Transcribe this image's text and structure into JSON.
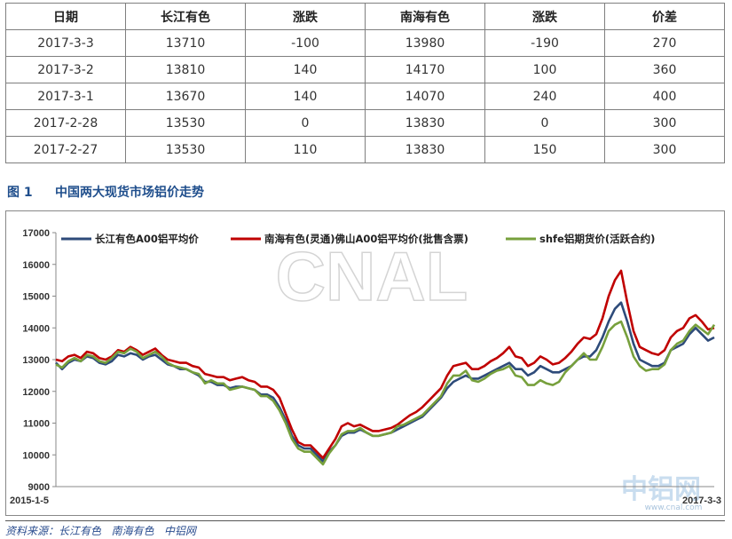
{
  "table": {
    "headers": [
      "日期",
      "长江有色",
      "涨跌",
      "南海有色",
      "涨跌",
      "价差"
    ],
    "rows": [
      [
        "2017-3-3",
        "13710",
        "-100",
        "13980",
        "-190",
        "270"
      ],
      [
        "2017-3-2",
        "13810",
        "140",
        "14170",
        "100",
        "360"
      ],
      [
        "2017-3-1",
        "13670",
        "140",
        "14070",
        "240",
        "400"
      ],
      [
        "2017-2-28",
        "13530",
        "0",
        "13830",
        "0",
        "300"
      ],
      [
        "2017-2-27",
        "13530",
        "110",
        "13830",
        "150",
        "300"
      ]
    ]
  },
  "figure": {
    "number": "图 1",
    "title": "中国两大现货市场铝价走势"
  },
  "watermark": {
    "text": "CNAL",
    "logo_text": "中铝网",
    "logo_url": "www.cnal.com"
  },
  "source_note": "资料来源：长江有色   南海有色   中铝网",
  "chart_data": {
    "type": "line",
    "x_start": "2015-1-5",
    "x_end": "2017-3-3",
    "x_tick_labels": [
      "2015-1-5",
      "2017-3-3"
    ],
    "ylim": [
      9000,
      17000
    ],
    "y_ticks": [
      9000,
      10000,
      11000,
      12000,
      13000,
      14000,
      15000,
      16000,
      17000
    ],
    "grid": false,
    "legend": "top",
    "series": [
      {
        "name": "长江有色A00铝平均价",
        "color": "#2e4b7a",
        "values": [
          12900,
          12700,
          12900,
          13000,
          12950,
          13100,
          13050,
          12900,
          12850,
          12950,
          13150,
          13100,
          13200,
          13150,
          13000,
          13100,
          13150,
          13000,
          12850,
          12800,
          12700,
          12700,
          12600,
          12500,
          12300,
          12300,
          12200,
          12200,
          12100,
          12150,
          12150,
          12100,
          12050,
          11900,
          11900,
          11800,
          11500,
          11100,
          10600,
          10300,
          10200,
          10200,
          10000,
          9800,
          10100,
          10300,
          10600,
          10700,
          10700,
          10800,
          10700,
          10600,
          10600,
          10650,
          10700,
          10800,
          10900,
          11000,
          11100,
          11200,
          11400,
          11600,
          11800,
          12100,
          12300,
          12400,
          12500,
          12400,
          12400,
          12500,
          12600,
          12700,
          12800,
          12900,
          12700,
          12700,
          12500,
          12600,
          12800,
          12700,
          12600,
          12600,
          12700,
          12800,
          13000,
          13100,
          13100,
          13300,
          13700,
          14200,
          14600,
          14800,
          14200,
          13500,
          13000,
          12900,
          12800,
          12800,
          12900,
          13300,
          13400,
          13500,
          13800,
          14000,
          13800,
          13600,
          13700
        ]
      },
      {
        "name": "南海有色(灵通)佛山A00铝平均价(批售含票)",
        "color": "#c00000",
        "values": [
          13000,
          12950,
          13100,
          13150,
          13050,
          13250,
          13200,
          13050,
          13000,
          13100,
          13300,
          13250,
          13400,
          13300,
          13150,
          13250,
          13350,
          13150,
          13000,
          12950,
          12900,
          12900,
          12800,
          12750,
          12550,
          12500,
          12450,
          12450,
          12350,
          12400,
          12450,
          12350,
          12300,
          12150,
          12150,
          12050,
          11800,
          11300,
          10800,
          10400,
          10300,
          10300,
          10100,
          9900,
          10200,
          10500,
          10900,
          11000,
          10900,
          10950,
          10850,
          10750,
          10750,
          10800,
          10850,
          10950,
          11100,
          11250,
          11350,
          11500,
          11700,
          11900,
          12100,
          12500,
          12800,
          12850,
          12900,
          12700,
          12700,
          12800,
          12950,
          13050,
          13200,
          13400,
          13100,
          13050,
          12800,
          12900,
          13100,
          13000,
          12850,
          12900,
          13050,
          13250,
          13500,
          13700,
          13650,
          13800,
          14300,
          15000,
          15500,
          15800,
          14800,
          13900,
          13400,
          13300,
          13200,
          13150,
          13300,
          13700,
          13900,
          14000,
          14300,
          14400,
          14200,
          13950,
          14000
        ]
      },
      {
        "name": "shfe铝期货价(活跃合约)",
        "color": "#77a03c",
        "values": [
          12850,
          12750,
          12950,
          13050,
          12950,
          13150,
          13100,
          12950,
          12900,
          13050,
          13250,
          13200,
          13350,
          13250,
          13050,
          13150,
          13250,
          13100,
          12900,
          12800,
          12750,
          12700,
          12600,
          12550,
          12250,
          12350,
          12250,
          12250,
          12050,
          12100,
          12150,
          12100,
          12050,
          11850,
          11850,
          11700,
          11400,
          11000,
          10500,
          10200,
          10100,
          10100,
          9900,
          9700,
          10050,
          10300,
          10650,
          10750,
          10750,
          10850,
          10700,
          10600,
          10600,
          10650,
          10700,
          10900,
          10950,
          11050,
          11150,
          11250,
          11450,
          11650,
          11850,
          12250,
          12500,
          12500,
          12650,
          12350,
          12300,
          12400,
          12550,
          12650,
          12700,
          12800,
          12500,
          12450,
          12200,
          12200,
          12350,
          12250,
          12200,
          12300,
          12600,
          12800,
          13000,
          13200,
          13000,
          13000,
          13400,
          13900,
          14100,
          14200,
          13700,
          13100,
          12800,
          12650,
          12700,
          12700,
          12850,
          13300,
          13500,
          13600,
          13900,
          14100,
          13950,
          13800,
          14100
        ]
      }
    ]
  }
}
